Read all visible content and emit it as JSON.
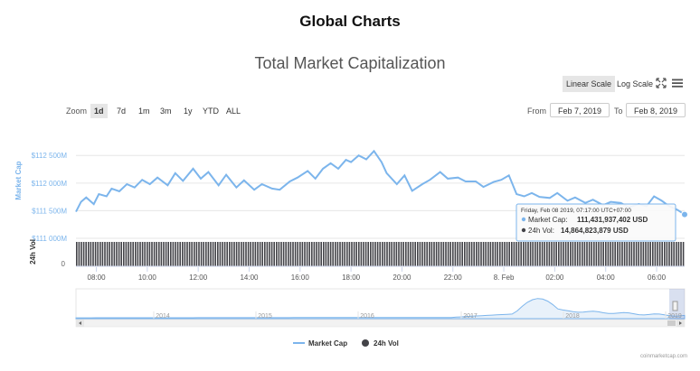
{
  "page": {
    "title": "Global Charts",
    "credit": "coinmarketcap.com"
  },
  "toolbar": {
    "linear_label": "Linear Scale",
    "log_label": "Log Scale",
    "expand_icon": "expand-arrows-icon",
    "menu_icon": "hamburger-menu-icon"
  },
  "zoom": {
    "label": "Zoom",
    "buttons": [
      "1d",
      "7d",
      "1m",
      "3m",
      "1y",
      "YTD",
      "ALL"
    ],
    "active": "1d"
  },
  "range": {
    "from_label": "From",
    "from_value": "Feb 7, 2019",
    "to_label": "To",
    "to_value": "Feb 8, 2019"
  },
  "chart_data": {
    "type": "line",
    "title": "Total Market Capitalization",
    "ylabel": "Market Cap",
    "ylabel_volume": "24h Vol",
    "y_ticks": [
      "$111 000M",
      "$111 500M",
      "$112 000M",
      "$112 500M"
    ],
    "y_tick_values": [
      111000,
      111500,
      112000,
      112500
    ],
    "ylim": [
      111000,
      112700
    ],
    "volume_tick": "0",
    "x_ticks": [
      "08:00",
      "10:00",
      "12:00",
      "14:00",
      "16:00",
      "18:00",
      "20:00",
      "22:00",
      "8. Feb",
      "02:00",
      "04:00",
      "06:00"
    ],
    "x_tick_hours": [
      8,
      10,
      12,
      14,
      16,
      18,
      20,
      22,
      24,
      26,
      28,
      30
    ],
    "xlim_hours": [
      7.2,
      31.1
    ],
    "series": [
      {
        "name": "Market Cap",
        "color": "#7cb5ec",
        "x_hours": [
          7.2,
          7.4,
          7.6,
          7.9,
          8.1,
          8.4,
          8.6,
          8.9,
          9.2,
          9.5,
          9.8,
          10.1,
          10.4,
          10.8,
          11.1,
          11.4,
          11.8,
          12.1,
          12.4,
          12.8,
          13.1,
          13.5,
          13.8,
          14.2,
          14.5,
          14.9,
          15.2,
          15.6,
          15.9,
          16.3,
          16.6,
          16.9,
          17.2,
          17.5,
          17.8,
          18.0,
          18.3,
          18.6,
          18.9,
          19.2,
          19.4,
          19.8,
          20.1,
          20.4,
          20.8,
          21.1,
          21.5,
          21.8,
          22.2,
          22.5,
          22.9,
          23.2,
          23.6,
          23.9,
          24.2,
          24.5,
          24.8,
          25.1,
          25.4,
          25.8,
          26.1,
          26.5,
          26.8,
          27.2,
          27.5,
          27.9,
          28.2,
          28.6,
          28.9,
          29.3,
          29.6,
          29.9,
          30.2,
          30.5,
          30.8,
          31.1
        ],
        "values": [
          111480,
          111660,
          111740,
          111620,
          111800,
          111760,
          111900,
          111850,
          111980,
          111920,
          112060,
          111980,
          112100,
          111960,
          112180,
          112040,
          112260,
          112080,
          112200,
          111960,
          112150,
          111920,
          112050,
          111880,
          111980,
          111900,
          111880,
          112030,
          112100,
          112220,
          112080,
          112260,
          112360,
          112260,
          112420,
          112380,
          112500,
          112430,
          112580,
          112380,
          112180,
          111980,
          112140,
          111860,
          111980,
          112060,
          112200,
          112080,
          112100,
          112030,
          112030,
          111930,
          112020,
          112060,
          112140,
          111800,
          111760,
          111820,
          111750,
          111730,
          111820,
          111680,
          111740,
          111640,
          111700,
          111600,
          111660,
          111640,
          111560,
          111620,
          111580,
          111760,
          111680,
          111580,
          111520,
          111431.94
        ]
      },
      {
        "name": "24h Vol",
        "color": "#434348"
      }
    ],
    "navigator": {
      "years": [
        "2014",
        "2015",
        "2016",
        "2017",
        "2018",
        "2019"
      ]
    },
    "legend": {
      "placement": "bottom-center",
      "items": [
        "Market Cap",
        "24h Vol"
      ]
    },
    "tooltip": {
      "date": "Friday, Feb 08 2019, 07:17:00 UTC+07:00",
      "cap_label": "Market Cap:",
      "cap_value": "111,431,937,402 USD",
      "vol_label": "24h Vol:",
      "vol_value": "14,864,823,879 USD"
    }
  }
}
